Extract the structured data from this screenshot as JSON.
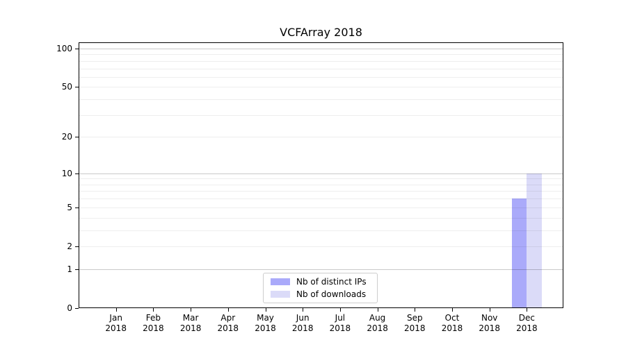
{
  "chart_data": {
    "type": "bar",
    "title": "VCFArray 2018",
    "year": "2018",
    "categories": [
      "Jan",
      "Feb",
      "Mar",
      "Apr",
      "May",
      "Jun",
      "Jul",
      "Aug",
      "Sep",
      "Oct",
      "Nov",
      "Dec"
    ],
    "series": [
      {
        "name": "Nb of distinct IPs",
        "color": "#aaaafa",
        "values": [
          0,
          0,
          0,
          0,
          0,
          0,
          0,
          0,
          0,
          0,
          0,
          6
        ]
      },
      {
        "name": "Nb of downloads",
        "color": "#dbdbf8",
        "values": [
          0,
          0,
          0,
          0,
          0,
          0,
          0,
          0,
          0,
          0,
          0,
          10
        ]
      }
    ],
    "yscale": "log1p",
    "ylim": [
      0,
      100
    ],
    "yticks": [
      0,
      1,
      2,
      5,
      10,
      20,
      50,
      100
    ],
    "major_gridlines": [
      1,
      10,
      100
    ],
    "minor_gridlines": [
      2,
      3,
      4,
      5,
      6,
      7,
      8,
      9,
      20,
      30,
      40,
      50,
      60,
      70,
      80,
      90
    ],
    "grid": true,
    "legend_position": "lower center",
    "axis_color": "#000000",
    "major_grid_color": "#cacaca",
    "minor_grid_color": "#efefef"
  }
}
